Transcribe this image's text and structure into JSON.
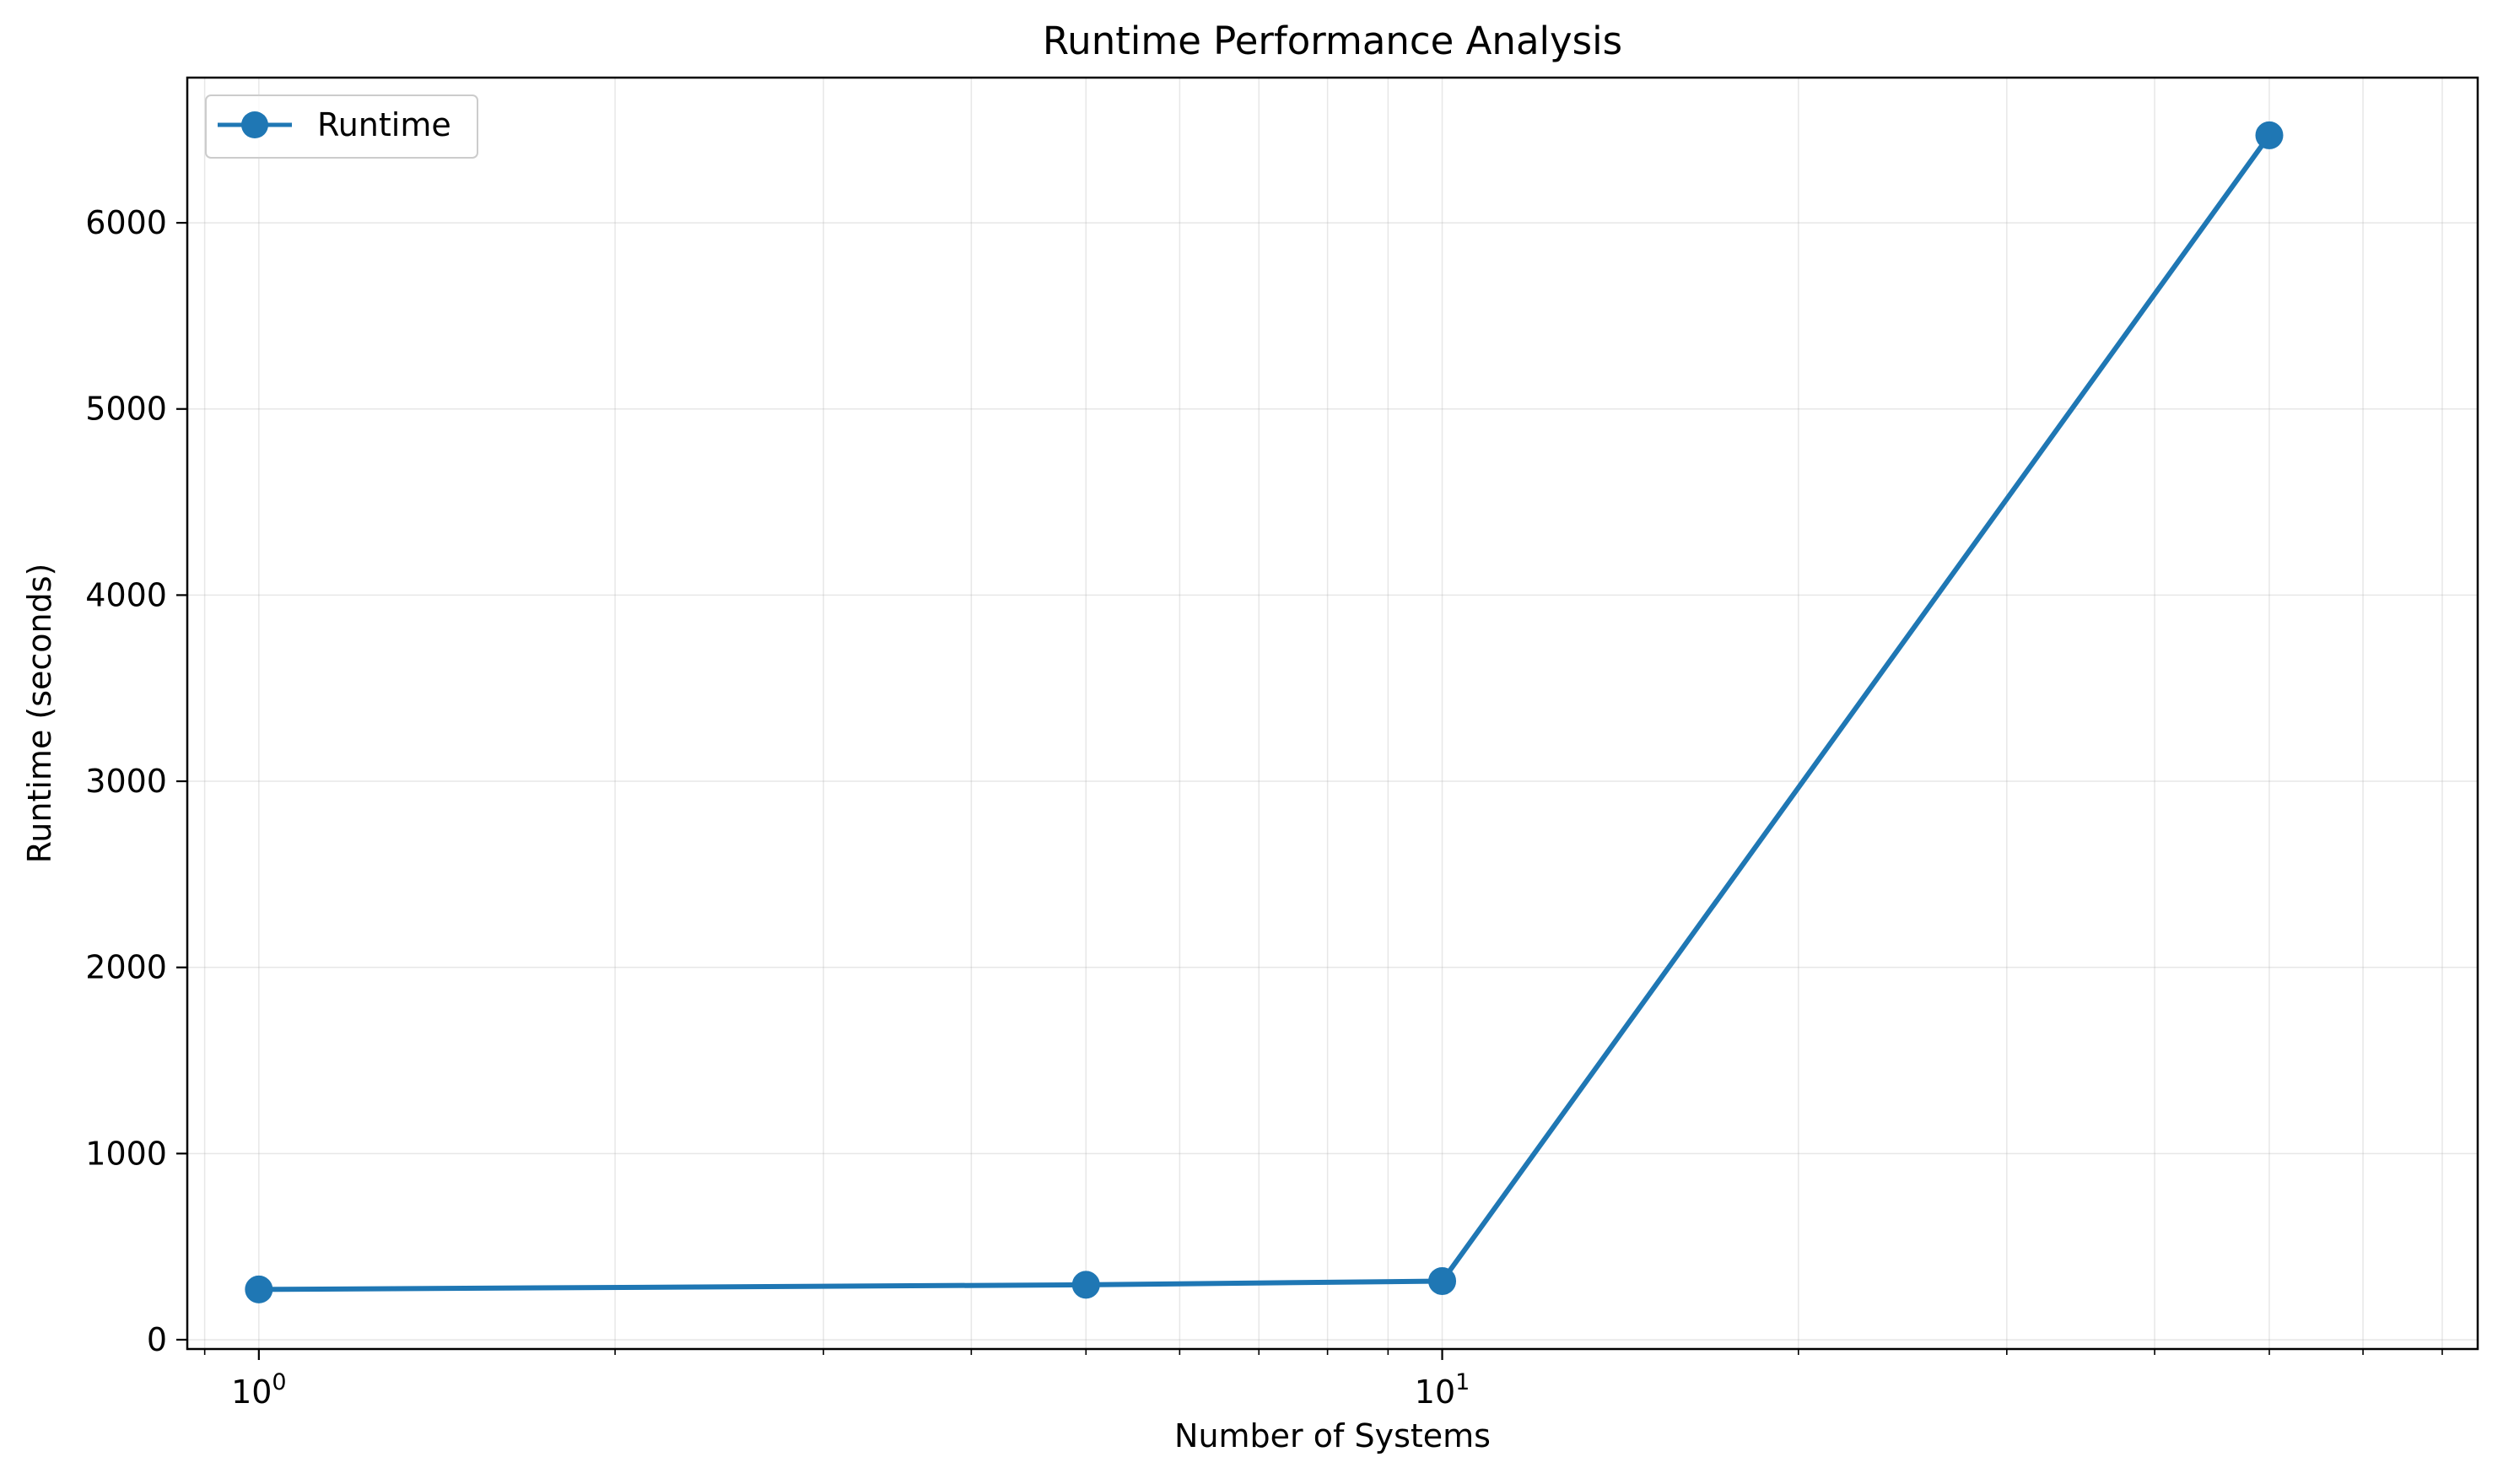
{
  "chart_data": {
    "type": "line",
    "title": "Runtime Performance Analysis",
    "xlabel": "Number of Systems",
    "ylabel": "Runtime (seconds)",
    "x_scale": "log",
    "xlim": [
      0.87,
      75
    ],
    "ylim": [
      -50,
      6780
    ],
    "x_ticks": [
      {
        "value": 1,
        "base": "10",
        "exp": "0"
      },
      {
        "value": 10,
        "base": "10",
        "exp": "1"
      }
    ],
    "y_ticks": [
      0,
      1000,
      2000,
      3000,
      4000,
      5000,
      6000
    ],
    "y_tick_labels": [
      "0",
      "1000",
      "2000",
      "3000",
      "4000",
      "5000",
      "6000"
    ],
    "grid": true,
    "legend_position": "top-left",
    "series": [
      {
        "name": "Runtime",
        "color": "#1f77b4",
        "marker": "circle",
        "x": [
          1,
          5,
          10,
          50
        ],
        "values": [
          270,
          295,
          315,
          6470
        ]
      }
    ]
  }
}
